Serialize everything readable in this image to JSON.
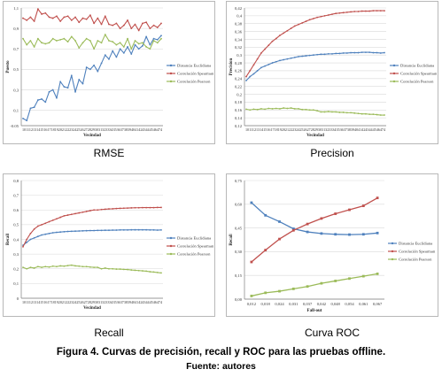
{
  "caption": "Figura 4. Curvas de precisión, recall y ROC para las pruebas offline.",
  "source": "Fuente: autores",
  "colors": {
    "blue": "#4f81bd",
    "red": "#c0504d",
    "green": "#9bbb59",
    "grid": "#d9d9d9",
    "axis": "#7f7f7f"
  },
  "chart_data": [
    {
      "id": "rmse",
      "type": "line",
      "title": "RMSE",
      "xlabel": "Vecindad",
      "ylabel": "Puesto",
      "ylim": [
        -0.05,
        1.1
      ],
      "yticks": [
        -0.05,
        0.1,
        0.3,
        0.5,
        0.7,
        0.9,
        1.1
      ],
      "ytick_labels": [
        "-0.05",
        "0,1",
        "0,3",
        "0,5",
        "0,7",
        "0,9",
        "1,1"
      ],
      "x": [
        10,
        11,
        12,
        13,
        14,
        15,
        16,
        17,
        18,
        19,
        20,
        21,
        22,
        23,
        24,
        25,
        26,
        27,
        28,
        29,
        30,
        31,
        32,
        33,
        34,
        35,
        36,
        37,
        38,
        39,
        40,
        41,
        42,
        43,
        44,
        45,
        46,
        47
      ],
      "xtick_text": "10111213141516171819202122232425262728293031323334353637383940414243444546474",
      "legend_position": "right",
      "series": [
        {
          "name": "Distancia Euclidiana",
          "color": "blue",
          "values": [
            0.02,
            0.0,
            0.12,
            0.13,
            0.2,
            0.21,
            0.18,
            0.28,
            0.3,
            0.22,
            0.38,
            0.33,
            0.32,
            0.44,
            0.28,
            0.4,
            0.36,
            0.52,
            0.5,
            0.54,
            0.48,
            0.56,
            0.64,
            0.6,
            0.68,
            0.62,
            0.7,
            0.66,
            0.72,
            0.65,
            0.74,
            0.7,
            0.73,
            0.82,
            0.74,
            0.8,
            0.79,
            0.83
          ]
        },
        {
          "name": "Correlación Spearman",
          "color": "red",
          "values": [
            1.0,
            0.98,
            1.01,
            0.97,
            1.09,
            1.04,
            1.05,
            1.01,
            1.0,
            1.02,
            0.97,
            1.01,
            1.02,
            0.98,
            1.01,
            0.96,
            1.0,
            0.99,
            1.03,
            0.95,
            1.0,
            0.94,
            1.02,
            0.94,
            0.93,
            0.95,
            0.9,
            0.93,
            0.98,
            0.9,
            0.94,
            0.88,
            0.95,
            0.96,
            0.9,
            0.93,
            0.91,
            0.95
          ]
        },
        {
          "name": "Correlación Pearson",
          "color": "green",
          "values": [
            0.8,
            0.74,
            0.78,
            0.72,
            0.8,
            0.76,
            0.75,
            0.76,
            0.8,
            0.78,
            0.79,
            0.8,
            0.77,
            0.82,
            0.78,
            0.71,
            0.76,
            0.8,
            0.78,
            0.7,
            0.78,
            0.76,
            0.84,
            0.78,
            0.77,
            0.74,
            0.76,
            0.72,
            0.8,
            0.7,
            0.78,
            0.75,
            0.76,
            0.72,
            0.7,
            0.78,
            0.76,
            0.8
          ]
        }
      ]
    },
    {
      "id": "precision",
      "type": "line",
      "title": "Precision",
      "xlabel": "Vecindad",
      "ylabel": "Precision",
      "ylim": [
        0.12,
        0.42
      ],
      "yticks": [
        0.12,
        0.14,
        0.16,
        0.18,
        0.2,
        0.22,
        0.24,
        0.26,
        0.28,
        0.3,
        0.32,
        0.34,
        0.36,
        0.38,
        0.4,
        0.42
      ],
      "ytick_labels": [
        "0,12",
        "0,14",
        "0,16",
        "0,18",
        "0,2",
        "0,22",
        "0,24",
        "0,26",
        "0,28",
        "0,3",
        "0,32",
        "0,34",
        "0,36",
        "0,38",
        "0,4",
        "0,42"
      ],
      "x": [
        10,
        11,
        12,
        13,
        14,
        15,
        16,
        17,
        18,
        19,
        20,
        21,
        22,
        23,
        24,
        25,
        26,
        27,
        28,
        29,
        30,
        31,
        32,
        33,
        34,
        35,
        36,
        37,
        38,
        39,
        40,
        41,
        42,
        43,
        44,
        45,
        46,
        47
      ],
      "xtick_text": "10111213141516171819202122232425262728293031323334353637383940414243444546474",
      "legend_position": "right",
      "series": [
        {
          "name": "Distancia Euclidiana",
          "color": "blue",
          "values": [
            0.235,
            0.245,
            0.252,
            0.26,
            0.268,
            0.272,
            0.276,
            0.28,
            0.283,
            0.286,
            0.288,
            0.29,
            0.292,
            0.294,
            0.296,
            0.297,
            0.298,
            0.299,
            0.3,
            0.301,
            0.302,
            0.302,
            0.303,
            0.303,
            0.304,
            0.304,
            0.305,
            0.305,
            0.306,
            0.306,
            0.306,
            0.307,
            0.307,
            0.307,
            0.306,
            0.306,
            0.305,
            0.306
          ]
        },
        {
          "name": "Correlación Spearman",
          "color": "red",
          "values": [
            0.245,
            0.26,
            0.275,
            0.29,
            0.305,
            0.315,
            0.325,
            0.335,
            0.342,
            0.35,
            0.356,
            0.362,
            0.368,
            0.374,
            0.378,
            0.382,
            0.386,
            0.39,
            0.393,
            0.396,
            0.398,
            0.4,
            0.402,
            0.404,
            0.406,
            0.407,
            0.408,
            0.409,
            0.41,
            0.411,
            0.411,
            0.412,
            0.412,
            0.412,
            0.413,
            0.413,
            0.413,
            0.413
          ]
        },
        {
          "name": "Correlación Pearson",
          "color": "green",
          "values": [
            0.162,
            0.16,
            0.162,
            0.161,
            0.163,
            0.162,
            0.164,
            0.163,
            0.164,
            0.163,
            0.165,
            0.164,
            0.165,
            0.163,
            0.163,
            0.161,
            0.161,
            0.16,
            0.16,
            0.158,
            0.155,
            0.155,
            0.156,
            0.155,
            0.155,
            0.154,
            0.154,
            0.153,
            0.153,
            0.152,
            0.151,
            0.15,
            0.15,
            0.149,
            0.149,
            0.148,
            0.147,
            0.147
          ]
        }
      ]
    },
    {
      "id": "recall",
      "type": "line",
      "title": "Recall",
      "xlabel": "Vecindad",
      "ylabel": "Recall",
      "ylim": [
        0,
        0.8
      ],
      "yticks": [
        0,
        0.1,
        0.2,
        0.3,
        0.4,
        0.5,
        0.6,
        0.7,
        0.8
      ],
      "ytick_labels": [
        "0",
        "0,1",
        "0,2",
        "0,3",
        "0,4",
        "0,5",
        "0,6",
        "0,7",
        "0,8"
      ],
      "x": [
        10,
        11,
        12,
        13,
        14,
        15,
        16,
        17,
        18,
        19,
        20,
        21,
        22,
        23,
        24,
        25,
        26,
        27,
        28,
        29,
        30,
        31,
        32,
        33,
        34,
        35,
        36,
        37,
        38,
        39,
        40,
        41,
        42,
        43,
        44,
        45,
        46,
        47
      ],
      "xtick_text": "10111213141516171819202122232425262728293031323334353637383940414243444546474",
      "legend_position": "right",
      "series": [
        {
          "name": "Distancia Euclidiana",
          "color": "blue",
          "values": [
            0.36,
            0.38,
            0.4,
            0.41,
            0.42,
            0.43,
            0.435,
            0.44,
            0.445,
            0.448,
            0.45,
            0.452,
            0.454,
            0.455,
            0.456,
            0.457,
            0.458,
            0.459,
            0.46,
            0.46,
            0.461,
            0.461,
            0.462,
            0.462,
            0.463,
            0.463,
            0.464,
            0.464,
            0.464,
            0.465,
            0.465,
            0.465,
            0.465,
            0.465,
            0.464,
            0.464,
            0.463,
            0.464
          ]
        },
        {
          "name": "Correlación Spearman",
          "color": "red",
          "values": [
            0.35,
            0.4,
            0.44,
            0.47,
            0.49,
            0.5,
            0.51,
            0.52,
            0.53,
            0.54,
            0.55,
            0.56,
            0.565,
            0.57,
            0.575,
            0.58,
            0.585,
            0.59,
            0.595,
            0.6,
            0.6,
            0.603,
            0.605,
            0.607,
            0.608,
            0.61,
            0.611,
            0.612,
            0.613,
            0.614,
            0.615,
            0.615,
            0.616,
            0.616,
            0.616,
            0.616,
            0.617,
            0.617
          ]
        },
        {
          "name": "Correlación Pearson",
          "color": "green",
          "values": [
            0.21,
            0.2,
            0.21,
            0.205,
            0.215,
            0.21,
            0.215,
            0.212,
            0.218,
            0.215,
            0.22,
            0.218,
            0.222,
            0.225,
            0.22,
            0.218,
            0.215,
            0.215,
            0.212,
            0.21,
            0.21,
            0.2,
            0.205,
            0.2,
            0.2,
            0.198,
            0.198,
            0.196,
            0.195,
            0.192,
            0.19,
            0.188,
            0.186,
            0.184,
            0.18,
            0.178,
            0.175,
            0.172
          ]
        }
      ]
    },
    {
      "id": "roc",
      "type": "line",
      "title": "Curva ROC",
      "xlabel": "Fall-out",
      "ylabel": "Recall",
      "ylim": [
        0,
        0.75
      ],
      "yticks": [
        0,
        0.15,
        0.3,
        0.45,
        0.6,
        0.75
      ],
      "ytick_labels": [
        "0,00",
        "0,15",
        "0,30",
        "0,45",
        "0,60",
        "0,75"
      ],
      "x": [
        0.012,
        0.018,
        0.024,
        0.031,
        0.037,
        0.042,
        0.048,
        0.054,
        0.061,
        0.067
      ],
      "xtick_labels": [
        "0,012",
        "0,018",
        "0,024",
        "0,031",
        "0,037",
        "0,042",
        "0,048",
        "0,054",
        "0,061",
        "0,067"
      ],
      "legend_position": "right",
      "series": [
        {
          "name": "Distancia Euclidiana",
          "color": "blue",
          "values": [
            0.61,
            0.53,
            0.49,
            0.445,
            0.425,
            0.415,
            0.41,
            0.408,
            0.41,
            0.418
          ]
        },
        {
          "name": "Correlación Spearman",
          "color": "red",
          "values": [
            0.235,
            0.31,
            0.38,
            0.435,
            0.475,
            0.51,
            0.54,
            0.565,
            0.59,
            0.64
          ]
        },
        {
          "name": "Correlación Pearson",
          "color": "green",
          "values": [
            0.02,
            0.04,
            0.05,
            0.065,
            0.08,
            0.1,
            0.115,
            0.13,
            0.145,
            0.16
          ]
        }
      ]
    }
  ]
}
